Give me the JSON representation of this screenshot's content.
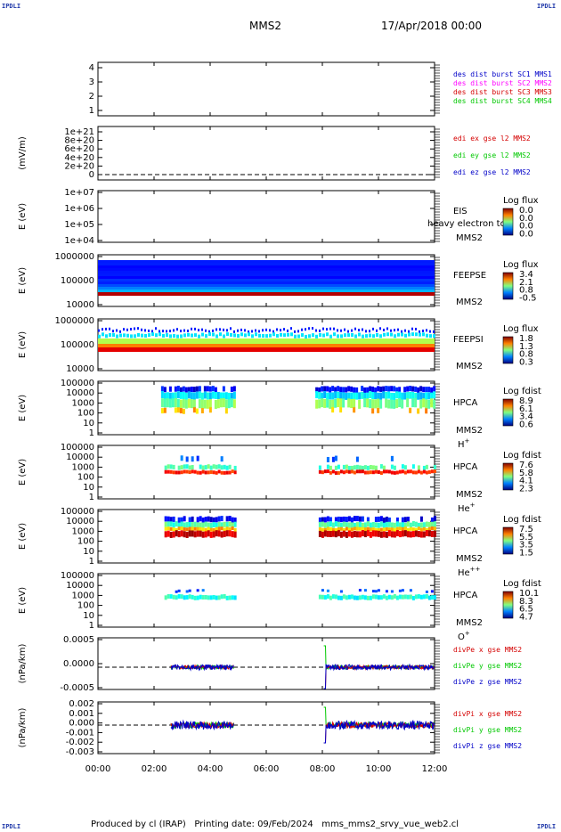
{
  "corner_labels": {
    "tl": "IPDLI",
    "tr": "IPDLI",
    "bl": "IPDLI",
    "br": "IPDLI"
  },
  "header": {
    "title": "MMS2",
    "date": "17/Apr/2018 00:00"
  },
  "footer": {
    "text": "Produced by cl (IRAP)   Printing date: 09/Feb/2024   mms_mms2_srvy_vue_web2.cl"
  },
  "x_tick_labels": [
    "00:00",
    "02:00",
    "04:00",
    "06:00",
    "08:00",
    "10:00",
    "12:00"
  ],
  "colors": {
    "blue": "#0000c8",
    "magenta": "#ff00ff",
    "red": "#d40000",
    "green": "#00c800"
  },
  "panels": [
    {
      "ylabel": "",
      "ticks": [
        "4",
        "3",
        "2",
        "1"
      ],
      "legend": [
        {
          "text": "des dist burst SC1 MMS1",
          "color": "#0000c8"
        },
        {
          "text": "des dist burst SC2 MMS2",
          "color": "#ff00ff"
        },
        {
          "text": "des dist burst SC3 MMS3",
          "color": "#d40000"
        },
        {
          "text": "des dist burst SC4 MMS4",
          "color": "#00c800"
        }
      ]
    },
    {
      "ylabel": "(mV/m)",
      "ticks": [
        "1e+21",
        "8e+20",
        "6e+20",
        "4e+20",
        "2e+20",
        "0"
      ],
      "legend": [
        {
          "text": "edi ex gse l2 MMS2",
          "color": "#d40000"
        },
        {
          "text": "edi ey gse l2 MMS2",
          "color": "#00c800"
        },
        {
          "text": "edi ez gse l2 MMS2",
          "color": "#0000c8"
        }
      ]
    },
    {
      "ylabel": "E (eV)",
      "ticks": [
        "1e+07",
        "1e+06",
        "1e+05",
        "1e+04"
      ],
      "side": [
        "EIS",
        "MMS2"
      ],
      "overlay": "heavy electron to",
      "cbar": {
        "title": "Log flux",
        "labels": [
          "0.0",
          "0.0",
          "0.0",
          "0.0"
        ]
      }
    },
    {
      "ylabel": "E (eV)",
      "ticks": [
        "1000000",
        "100000",
        "10000"
      ],
      "side": [
        "FEEPSE",
        "MMS2"
      ],
      "cbar": {
        "title": "Log flux",
        "labels": [
          "3.4",
          "2.1",
          "0.8",
          "-0.5"
        ]
      }
    },
    {
      "ylabel": "E (eV)",
      "ticks": [
        "1000000",
        "100000",
        "10000"
      ],
      "side": [
        "FEEPSI",
        "MMS2"
      ],
      "cbar": {
        "title": "Log flux",
        "labels": [
          "1.8",
          "1.3",
          "0.8",
          "0.3"
        ]
      }
    },
    {
      "ylabel": "E (eV)",
      "ticks": [
        "100000",
        "10000",
        "1000",
        "100",
        "10",
        "1"
      ],
      "side": [
        "HPCA",
        "MMS2"
      ],
      "species": "H",
      "charge": "+",
      "cbar": {
        "title": "Log fdist",
        "labels": [
          "8.9",
          "6.1",
          "3.4",
          "0.6"
        ]
      }
    },
    {
      "ylabel": "E (eV)",
      "ticks": [
        "100000",
        "10000",
        "1000",
        "100",
        "10",
        "1"
      ],
      "side": [
        "HPCA",
        "MMS2"
      ],
      "species": "He",
      "charge": "+",
      "cbar": {
        "title": "Log fdist",
        "labels": [
          "7.6",
          "5.8",
          "4.1",
          "2.3"
        ]
      }
    },
    {
      "ylabel": "E (eV)",
      "ticks": [
        "100000",
        "10000",
        "1000",
        "100",
        "10",
        "1"
      ],
      "side": [
        "HPCA",
        "MMS2"
      ],
      "species": "He",
      "charge": "++",
      "cbar": {
        "title": "Log fdist",
        "labels": [
          "7.5",
          "5.5",
          "3.5",
          "1.5"
        ]
      }
    },
    {
      "ylabel": "E (eV)",
      "ticks": [
        "100000",
        "10000",
        "1000",
        "100",
        "10",
        "1"
      ],
      "side": [
        "HPCA",
        "MMS2"
      ],
      "species": "O",
      "charge": "+",
      "cbar": {
        "title": "Log fdist",
        "labels": [
          "10.1",
          "8.3",
          "6.5",
          "4.7"
        ]
      }
    },
    {
      "ylabel": "(nPa/km)",
      "ticks": [
        "0.0005",
        "0.0000",
        "-0.0005"
      ],
      "legend": [
        {
          "text": "divPe x gse MMS2",
          "color": "#d40000"
        },
        {
          "text": "divPe y gse MMS2",
          "color": "#00c800"
        },
        {
          "text": "divPe z gse MMS2",
          "color": "#0000c8"
        }
      ]
    },
    {
      "ylabel": "(nPa/km)",
      "ticks": [
        "0.002",
        "0.001",
        "0.000",
        "-0.001",
        "-0.002",
        "-0.003"
      ],
      "legend": [
        {
          "text": "divPi x gse MMS2",
          "color": "#d40000"
        },
        {
          "text": "divPi y gse MMS2",
          "color": "#00c800"
        },
        {
          "text": "divPi z gse MMS2",
          "color": "#0000c8"
        }
      ]
    }
  ],
  "chart_data": {
    "type": "heatmap",
    "x_range_hours": [
      0,
      12
    ],
    "spectrogram_intervals_hours": {
      "feepse": [
        [
          0,
          12
        ]
      ],
      "feepsi": [
        [
          0,
          12
        ]
      ],
      "hpca": [
        [
          2.25,
          4.85
        ],
        [
          7.75,
          12
        ]
      ]
    },
    "divP_intervals_hours": [
      [
        2.6,
        4.85
      ],
      [
        8.05,
        12
      ]
    ]
  }
}
